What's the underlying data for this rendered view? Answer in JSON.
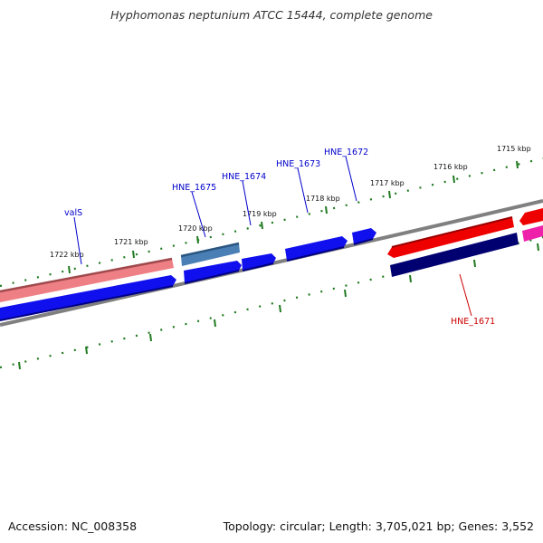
{
  "title": "Hyphomonas neptunium ATCC 15444, complete genome",
  "footer": {
    "accession": "Accession: NC_008358",
    "topology": "Topology: circular; Length: 3,705,021 bp; Genes: 3,552"
  },
  "scale_labels": [
    "1715 kbp",
    "1716 kbp",
    "1717 kbp",
    "1718 kbp",
    "1719 kbp",
    "1720 kbp",
    "1721 kbp",
    "1722 kbp"
  ],
  "gene_labels": [
    {
      "text": "valS",
      "color": "#0000cc"
    },
    {
      "text": "HNE_1675",
      "color": "#0000cc"
    },
    {
      "text": "HNE_1674",
      "color": "#0000cc"
    },
    {
      "text": "HNE_1673",
      "color": "#0000cc"
    },
    {
      "text": "HNE_1672",
      "color": "#0000cc"
    },
    {
      "text": "HNE_1671",
      "color": "#cc0000"
    }
  ],
  "colors": {
    "backbone": "#808080",
    "tick_green": "#1f7a1f",
    "forward_blue": "#1010ee",
    "reverse_navy": "#000070",
    "rrna_pink": "#ee7f84",
    "trna_steel": "#4a7fb5",
    "gene_red": "#ee0000",
    "gene_magenta": "#ee22aa"
  }
}
